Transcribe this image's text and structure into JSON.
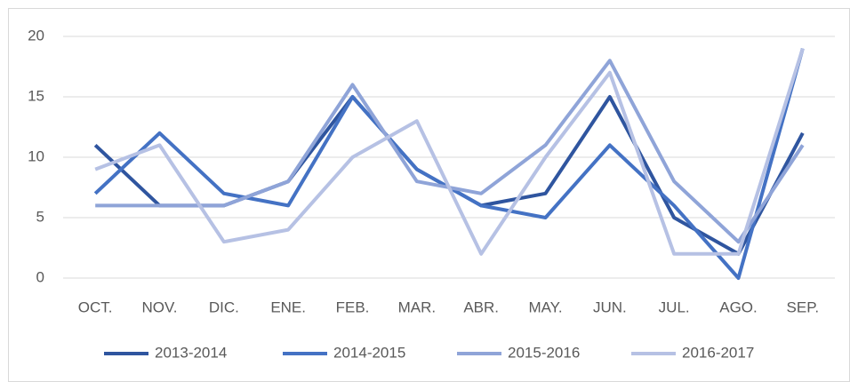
{
  "chart_data": {
    "type": "line",
    "categories": [
      "OCT.",
      "NOV.",
      "DIC.",
      "ENE.",
      "FEB.",
      "MAR.",
      "ABR.",
      "MAY.",
      "JUN.",
      "JUL.",
      "AGO.",
      "SEP."
    ],
    "series": [
      {
        "name": "2013-2014",
        "color": "#2f559f",
        "values": [
          11,
          6,
          6,
          8,
          15,
          9,
          6,
          7,
          15,
          5,
          2,
          12
        ]
      },
      {
        "name": "2014-2015",
        "color": "#4472c4",
        "values": [
          7,
          12,
          7,
          6,
          15,
          9,
          6,
          5,
          11,
          6,
          0,
          19
        ]
      },
      {
        "name": "2015-2016",
        "color": "#8fa4d8",
        "values": [
          6,
          6,
          6,
          8,
          16,
          8,
          7,
          11,
          18,
          8,
          3,
          11
        ]
      },
      {
        "name": "2016-2017",
        "color": "#b6c1e4",
        "values": [
          9,
          11,
          3,
          4,
          10,
          13,
          2,
          10,
          17,
          2,
          2,
          19
        ]
      }
    ],
    "ylim": [
      0,
      20
    ],
    "yticks": [
      0,
      5,
      10,
      15,
      20
    ],
    "grid": true,
    "legend": "bottom"
  }
}
